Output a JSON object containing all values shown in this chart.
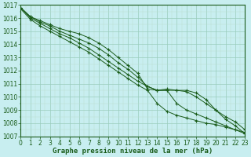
{
  "title": "Graphe pression niveau de la mer (hPa)",
  "bg_color": "#c8eef0",
  "grid_color_major": "#99ccbb",
  "grid_color_minor": "#bbddcc",
  "line_color": "#1a5c1a",
  "xlim": [
    0,
    23
  ],
  "ylim": [
    1007,
    1017
  ],
  "yticks": [
    1007,
    1008,
    1009,
    1010,
    1011,
    1012,
    1013,
    1014,
    1015,
    1016,
    1017
  ],
  "xticks": [
    0,
    1,
    2,
    3,
    4,
    5,
    6,
    7,
    8,
    9,
    10,
    11,
    12,
    13,
    14,
    15,
    16,
    17,
    18,
    19,
    20,
    21,
    22,
    23
  ],
  "series": [
    [
      1016.8,
      1016.1,
      1015.8,
      1015.5,
      1015.2,
      1015.0,
      1014.8,
      1014.5,
      1014.1,
      1013.6,
      1013.0,
      1012.4,
      1011.8,
      1010.6,
      1010.5,
      1010.5,
      1010.5,
      1010.5,
      1010.3,
      1009.8,
      1009.0,
      1008.3,
      1007.8,
      1007.2
    ],
    [
      1016.8,
      1016.1,
      1015.7,
      1015.4,
      1015.0,
      1014.7,
      1014.4,
      1014.1,
      1013.7,
      1013.2,
      1012.6,
      1012.1,
      1011.5,
      1010.8,
      1010.5,
      1010.6,
      1010.5,
      1010.4,
      1010.0,
      1009.5,
      1009.0,
      1008.5,
      1008.1,
      1007.5
    ],
    [
      1016.8,
      1016.0,
      1015.6,
      1015.2,
      1014.8,
      1014.5,
      1014.1,
      1013.7,
      1013.2,
      1012.7,
      1012.2,
      1011.7,
      1011.2,
      1010.8,
      1010.5,
      1010.5,
      1009.5,
      1009.0,
      1008.7,
      1008.4,
      1008.1,
      1007.8,
      1007.5,
      1007.3
    ],
    [
      1016.7,
      1015.9,
      1015.4,
      1015.0,
      1014.6,
      1014.2,
      1013.8,
      1013.4,
      1012.9,
      1012.4,
      1011.9,
      1011.4,
      1010.9,
      1010.5,
      1009.5,
      1008.9,
      1008.6,
      1008.4,
      1008.2,
      1008.0,
      1007.9,
      1007.7,
      1007.5,
      1007.2
    ]
  ],
  "label_fontsize": 6.5,
  "tick_fontsize": 5.5
}
